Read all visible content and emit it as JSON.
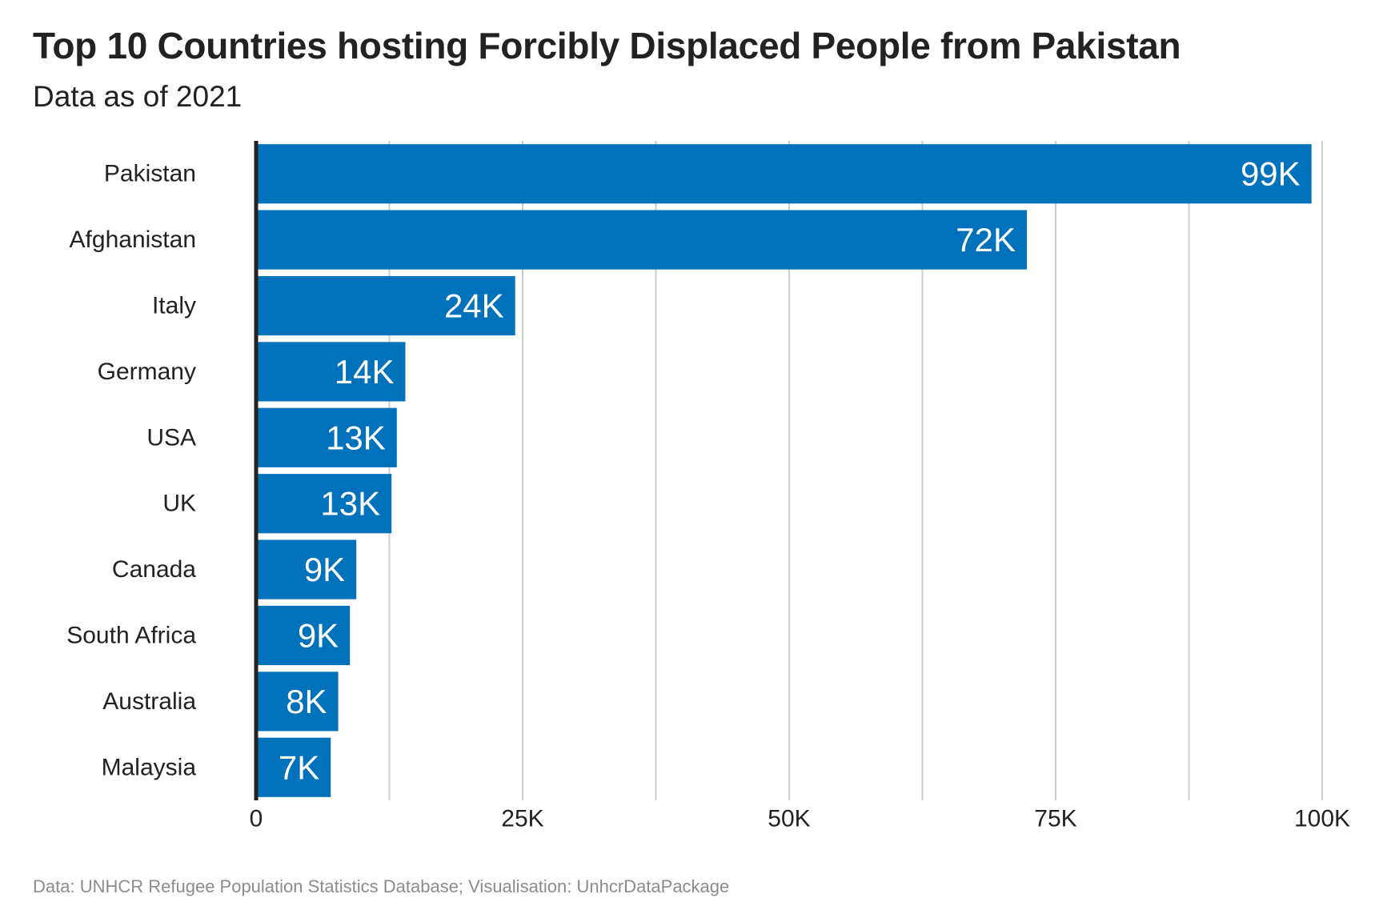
{
  "title": "Top 10 Countries hosting Forcibly Displaced People from Pakistan",
  "subtitle": "Data as of 2021",
  "caption": "Data: UNHCR Refugee Population Statistics Database; Visualisation: UnhcrDataPackage",
  "colors": {
    "bar": "#0072BC",
    "grid": "#cccccc",
    "axis": "#222222",
    "data_label": "#ffffff"
  },
  "chart_data": {
    "type": "bar",
    "orientation": "horizontal",
    "categories": [
      "Pakistan",
      "Afghanistan",
      "Italy",
      "Germany",
      "USA",
      "UK",
      "Canada",
      "South Africa",
      "Australia",
      "Malaysia"
    ],
    "values": [
      99000,
      72300,
      24300,
      14000,
      13200,
      12700,
      9400,
      8800,
      7700,
      7000
    ],
    "data_labels": [
      "99K",
      "72K",
      "24K",
      "14K",
      "13K",
      "13K",
      "9K",
      "9K",
      "8K",
      "7K"
    ],
    "xlim": [
      0,
      100000
    ],
    "x_ticks": [
      0,
      25000,
      50000,
      75000,
      100000
    ],
    "x_tick_labels": [
      "0",
      "25K",
      "50K",
      "75K",
      "100K"
    ],
    "grid": "vertical",
    "xlabel": "",
    "ylabel": ""
  }
}
